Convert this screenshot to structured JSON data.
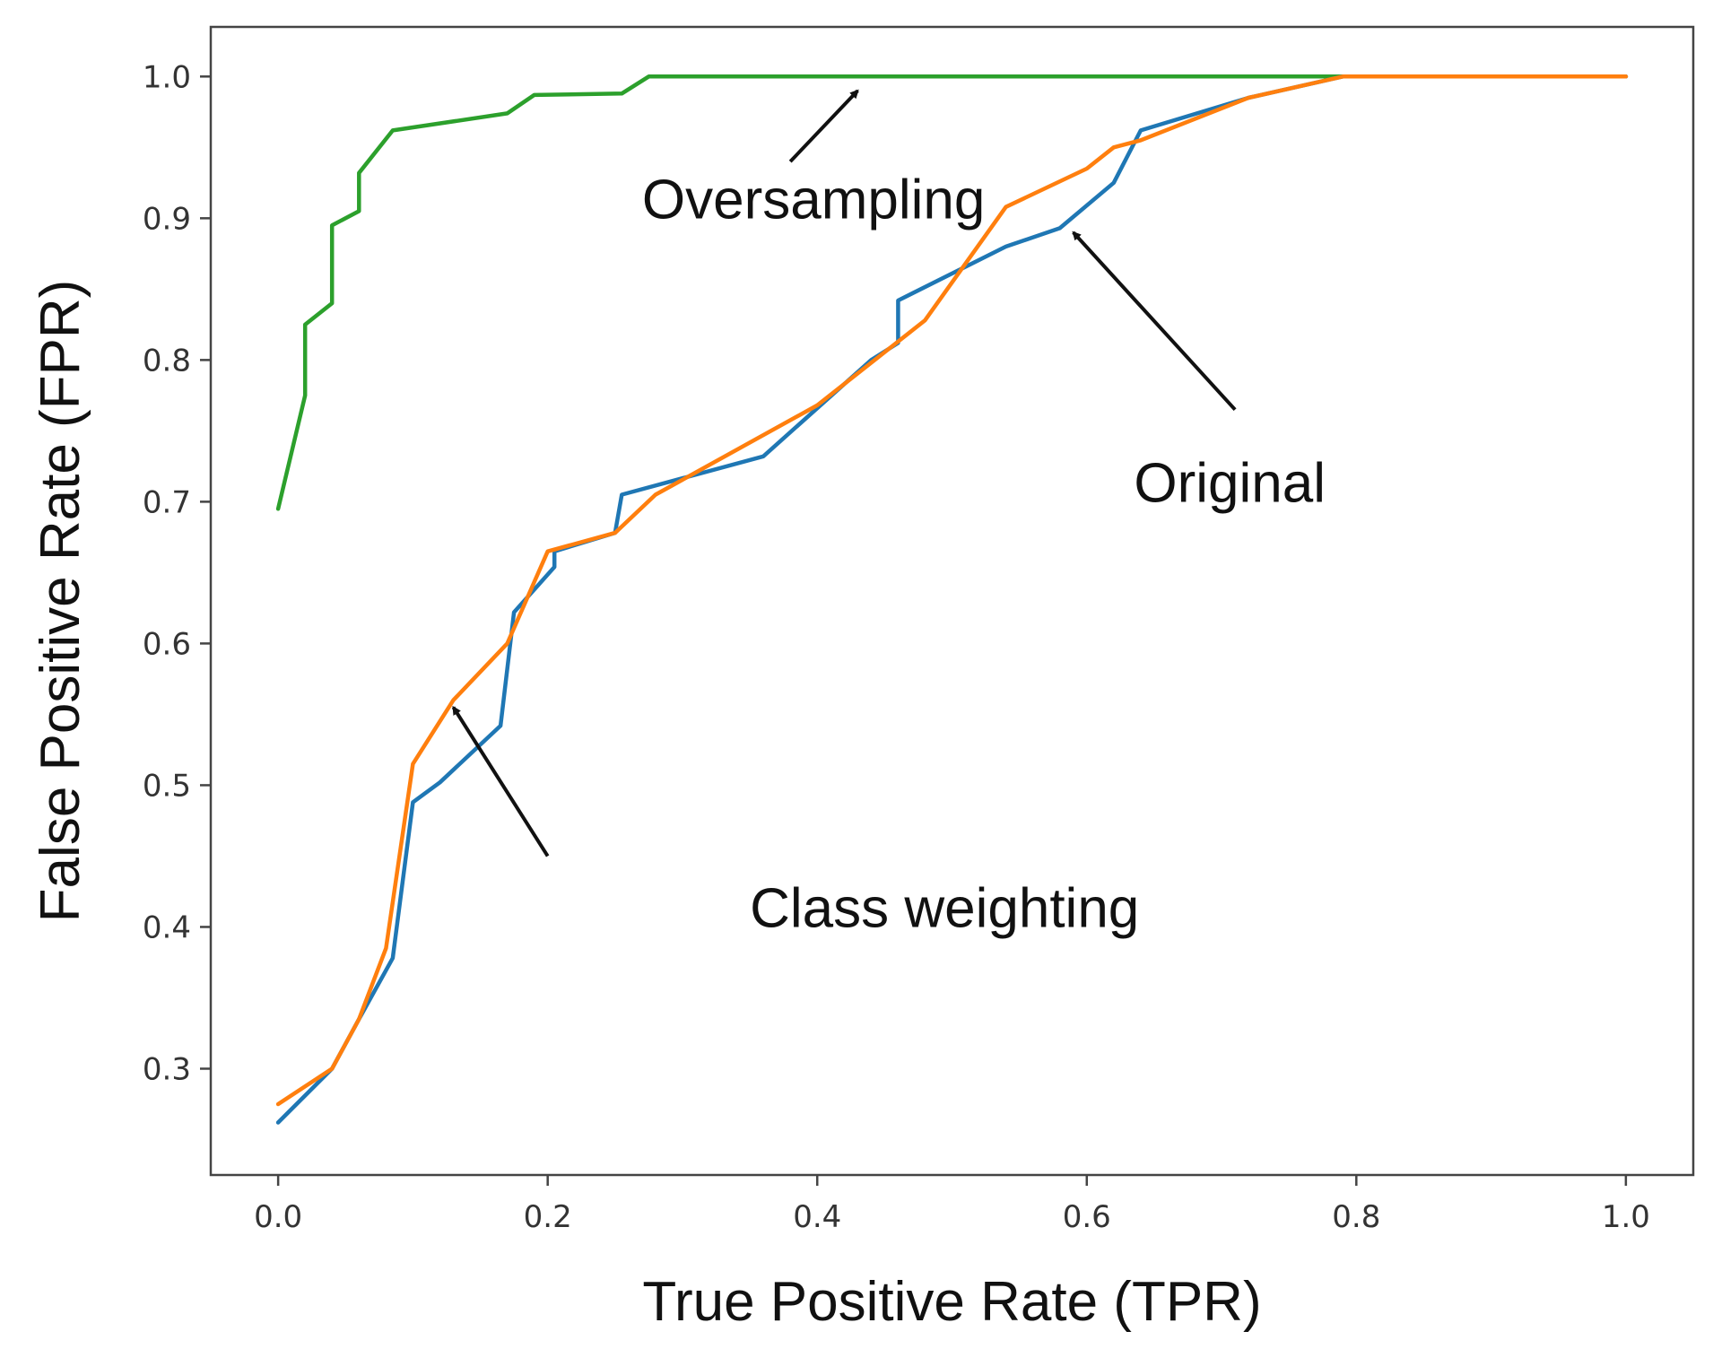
{
  "chart_data": {
    "type": "line",
    "title": "",
    "xlabel": "True Positive Rate (TPR)",
    "ylabel": "False Positive Rate (FPR)",
    "xlim": [
      -0.05,
      1.05
    ],
    "ylim": [
      0.225,
      1.035
    ],
    "xticks": [
      0.0,
      0.2,
      0.4,
      0.6,
      0.8,
      1.0
    ],
    "xtick_labels": [
      "0.0",
      "0.2",
      "0.4",
      "0.6",
      "0.8",
      "1.0"
    ],
    "yticks": [
      0.3,
      0.4,
      0.5,
      0.6,
      0.7,
      0.8,
      0.9,
      1.0
    ],
    "ytick_labels": [
      "0.3",
      "0.4",
      "0.5",
      "0.6",
      "0.7",
      "0.8",
      "0.9",
      "1.0"
    ],
    "grid": false,
    "legend": "none",
    "series": [
      {
        "color": "#2ca02c",
        "x": [
          0.0,
          0.02,
          0.02,
          0.04,
          0.04,
          0.06,
          0.06,
          0.085,
          0.17,
          0.19,
          0.255,
          0.275,
          1.0
        ],
        "y": [
          0.695,
          0.775,
          0.825,
          0.84,
          0.895,
          0.905,
          0.932,
          0.962,
          0.974,
          0.987,
          0.988,
          1.0,
          1.0
        ]
      },
      {
        "color": "#1f77b4",
        "x": [
          0.0,
          0.04,
          0.06,
          0.085,
          0.1,
          0.12,
          0.165,
          0.175,
          0.205,
          0.205,
          0.25,
          0.255,
          0.36,
          0.44,
          0.46,
          0.46,
          0.54,
          0.58,
          0.62,
          0.64,
          0.72,
          0.79,
          1.0
        ],
        "y": [
          0.262,
          0.3,
          0.335,
          0.378,
          0.488,
          0.502,
          0.542,
          0.622,
          0.654,
          0.665,
          0.678,
          0.705,
          0.732,
          0.8,
          0.812,
          0.842,
          0.88,
          0.893,
          0.925,
          0.962,
          0.985,
          1.0,
          1.0
        ]
      },
      {
        "color": "#ff7f0e",
        "x": [
          0.0,
          0.04,
          0.06,
          0.08,
          0.1,
          0.13,
          0.17,
          0.2,
          0.25,
          0.28,
          0.4,
          0.48,
          0.54,
          0.6,
          0.62,
          0.64,
          0.72,
          0.79,
          1.0
        ],
        "y": [
          0.275,
          0.3,
          0.335,
          0.385,
          0.515,
          0.56,
          0.6,
          0.665,
          0.678,
          0.705,
          0.768,
          0.828,
          0.908,
          0.935,
          0.95,
          0.955,
          0.985,
          1.0,
          1.0
        ]
      }
    ],
    "annotations": [
      {
        "name": "annotation-oversampling",
        "text": "Oversampling",
        "text_xy": [
          0.27,
          0.9
        ],
        "arrow_from": [
          0.38,
          0.94
        ],
        "arrow_to": [
          0.43,
          0.99
        ]
      },
      {
        "name": "annotation-original",
        "text": "Original",
        "text_xy": [
          0.635,
          0.7
        ],
        "arrow_from": [
          0.71,
          0.765
        ],
        "arrow_to": [
          0.59,
          0.89
        ]
      },
      {
        "name": "annotation-class-weighting",
        "text": "Class weighting",
        "text_xy": [
          0.35,
          0.4
        ],
        "arrow_from": [
          0.2,
          0.45
        ],
        "arrow_to": [
          0.13,
          0.555
        ]
      }
    ]
  }
}
